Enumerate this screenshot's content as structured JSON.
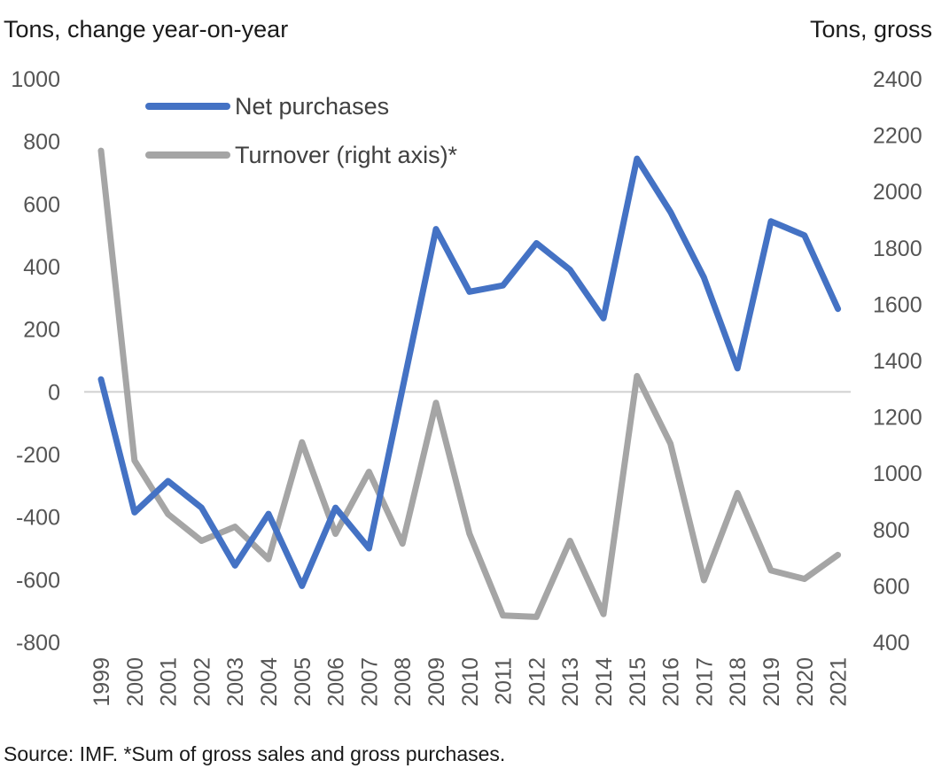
{
  "chart_data": {
    "type": "line",
    "y_left_label": "Tons, change year-on-year",
    "y_right_label": "Tons, gross",
    "source_note": "Source: IMF. *Sum of gross sales and gross purchases.",
    "x": [
      "1999",
      "2000",
      "2001",
      "2002",
      "2003",
      "2004",
      "2005",
      "2006",
      "2007",
      "2008",
      "2009",
      "2010",
      "2011",
      "2012",
      "2013",
      "2014",
      "2015",
      "2016",
      "2017",
      "2018",
      "2019",
      "2020",
      "2021"
    ],
    "y_left_range": [
      -800,
      1000
    ],
    "y_left_ticks": [
      1000,
      800,
      600,
      400,
      200,
      0,
      -200,
      -400,
      -600,
      -800
    ],
    "y_right_range": [
      400,
      2400
    ],
    "y_right_ticks": [
      2400,
      2200,
      2000,
      1800,
      1600,
      1400,
      1200,
      1000,
      800,
      600,
      400
    ],
    "zero_line": true,
    "legend_position": "top-left",
    "series": [
      {
        "name": "Net purchases",
        "axis": "left",
        "color": "#4472C4",
        "values": [
          40,
          -385,
          -285,
          -370,
          -555,
          -390,
          -620,
          -370,
          -500,
          10,
          520,
          320,
          340,
          475,
          390,
          235,
          745,
          575,
          365,
          75,
          545,
          500,
          265
        ]
      },
      {
        "name": "Turnover (right axis)*",
        "axis": "right",
        "color": "#A5A5A5",
        "values": [
          2145,
          1045,
          855,
          760,
          810,
          695,
          1110,
          785,
          1005,
          750,
          1250,
          785,
          495,
          490,
          760,
          500,
          1345,
          1105,
          620,
          930,
          655,
          625,
          710
        ]
      }
    ]
  }
}
